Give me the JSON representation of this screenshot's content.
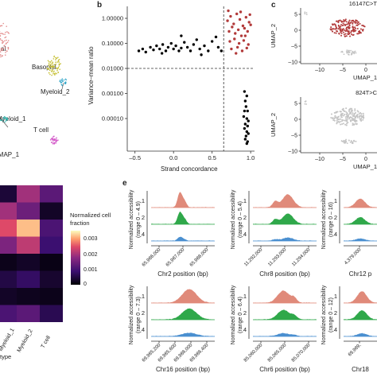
{
  "panels": {
    "b": "b",
    "c": "c",
    "e": "e"
  },
  "umap_a": {
    "clusters": [
      {
        "label": "Basophil",
        "color": "#c8c23a"
      },
      {
        "label": "Myeloid_2",
        "color": "#35a7c9"
      },
      {
        "label": "Myeloid_1",
        "color": "#2fb8b0"
      },
      {
        "label": "T cell",
        "color": "#d357c8"
      }
    ],
    "partial_top_label": "al",
    "xlabel_partial": "UMAP_1"
  },
  "heatmap": {
    "legend_title_1": "Normalized cell",
    "legend_title_2": "fraction",
    "legend_ticks": [
      "0.003",
      "0.002",
      "0.001",
      "0"
    ],
    "x_ticks": [
      "Myeloid_1",
      "Myeloid_2",
      "T cell"
    ],
    "x_partial": "Myeloid_1",
    "xlabel_partial": "type",
    "columns": 3,
    "rows": 8
  },
  "chart_data": [
    {
      "type": "scatter",
      "panel": "b",
      "xlabel": "Strand concordance",
      "ylabel": "Variance–mean ratio",
      "log_y": true,
      "xlim": [
        -0.6,
        1.05
      ],
      "ylim": [
        5e-06,
        3
      ],
      "x_ticks": [
        -0.5,
        0,
        0.5,
        1
      ],
      "x_tick_labels": [
        "–0.5",
        "0.0",
        "0.5",
        "1.0"
      ],
      "y_ticks": [
        1,
        0.1,
        0.01,
        0.001,
        0.0001
      ],
      "y_tick_labels": [
        "1.00000",
        "0.10000",
        "0.01000",
        "0.00100",
        "0.00010"
      ],
      "thresholds": {
        "x": 0.65,
        "y": 0.01
      },
      "series": [
        {
          "color": "#000000",
          "points": [
            [
              -0.45,
              0.05
            ],
            [
              -0.4,
              0.06
            ],
            [
              -0.36,
              0.045
            ],
            [
              -0.3,
              0.07
            ],
            [
              -0.26,
              0.055
            ],
            [
              -0.22,
              0.08
            ],
            [
              -0.18,
              0.06
            ],
            [
              -0.14,
              0.09
            ],
            [
              -0.1,
              0.05
            ],
            [
              -0.07,
              0.07
            ],
            [
              -0.03,
              0.1
            ],
            [
              0.0,
              0.06
            ],
            [
              0.03,
              0.08
            ],
            [
              0.07,
              0.05
            ],
            [
              0.1,
              0.065
            ],
            [
              0.14,
              0.11
            ],
            [
              0.18,
              0.07
            ],
            [
              0.22,
              0.05
            ],
            [
              0.26,
              0.09
            ],
            [
              0.3,
              0.14
            ],
            [
              0.34,
              0.06
            ],
            [
              0.4,
              0.08
            ],
            [
              0.45,
              0.05
            ],
            [
              0.5,
              0.12
            ],
            [
              0.55,
              0.18
            ],
            [
              0.58,
              0.07
            ],
            [
              0.62,
              0.05
            ],
            [
              0.1,
              0.2
            ],
            [
              -0.15,
              0.04
            ],
            [
              0.36,
              0.035
            ],
            [
              0.92,
              0.0012
            ],
            [
              0.95,
              0.0008
            ],
            [
              0.93,
              0.0005
            ],
            [
              0.94,
              0.0003
            ],
            [
              0.96,
              0.0002
            ],
            [
              0.91,
              0.00012
            ],
            [
              0.95,
              0.0001
            ],
            [
              0.97,
              8e-05
            ],
            [
              0.93,
              6e-05
            ],
            [
              0.96,
              5e-05
            ],
            [
              0.92,
              4e-05
            ],
            [
              0.95,
              3e-05
            ],
            [
              0.97,
              2.5e-05
            ],
            [
              0.94,
              2e-05
            ],
            [
              0.93,
              1.5e-05
            ],
            [
              0.96,
              1.2e-05
            ],
            [
              0.95,
              1e-05
            ],
            [
              0.92,
              0.0002
            ]
          ]
        },
        {
          "color": "#b23a3a",
          "points": [
            [
              0.7,
              0.8
            ],
            [
              0.74,
              1.2
            ],
            [
              0.78,
              0.6
            ],
            [
              0.82,
              1.5
            ],
            [
              0.86,
              0.9
            ],
            [
              0.9,
              0.5
            ],
            [
              0.94,
              1.1
            ],
            [
              0.98,
              0.7
            ],
            [
              0.72,
              0.3
            ],
            [
              0.76,
              0.45
            ],
            [
              0.8,
              0.25
            ],
            [
              0.84,
              0.35
            ],
            [
              0.88,
              0.2
            ],
            [
              0.92,
              0.4
            ],
            [
              0.96,
              0.3
            ],
            [
              1.0,
              0.55
            ],
            [
              0.73,
              0.12
            ],
            [
              0.79,
              0.15
            ],
            [
              0.85,
              0.1
            ],
            [
              0.91,
              0.13
            ],
            [
              0.97,
              0.09
            ],
            [
              0.75,
              0.06
            ],
            [
              0.83,
              0.07
            ],
            [
              0.89,
              0.05
            ],
            [
              0.95,
              0.065
            ],
            [
              0.71,
              2.0
            ],
            [
              0.87,
              1.8
            ],
            [
              0.99,
              1.4
            ],
            [
              0.81,
              0.04
            ],
            [
              0.93,
              0.2
            ]
          ]
        }
      ]
    }
  ],
  "umap_c": {
    "plots": [
      {
        "title": "16147C>T",
        "ylabel": "UMAP_2",
        "xlabel": "UMAP_1",
        "highlight": true
      },
      {
        "title": "824T>C",
        "ylabel": "UMAP_2",
        "xlabel": "UMAP_1",
        "highlight": false
      }
    ],
    "x_ticks": [
      "–10",
      "–5",
      "0"
    ],
    "y_ticks": [
      "5",
      "0",
      "–5",
      "–10"
    ]
  },
  "coverage": {
    "row_labels": [
      "1",
      "2",
      "4"
    ],
    "colors": [
      "#e08a7a",
      "#2fa84a",
      "#4a8fd0"
    ],
    "plots": [
      {
        "ylabel": "Normalized accessibility",
        "range": "(range 0 – 4.9)",
        "xlabel": "Chr2 position (bp)",
        "ticks": [
          "65,986,000",
          "65,987,000",
          "65,988,000"
        ]
      },
      {
        "ylabel": "Normalized accessibility",
        "range": "(range 0 – 5.4)",
        "xlabel": "Chr8 position (bp)",
        "ticks": [
          "11,292,000",
          "11,293,000",
          "11,294,000"
        ]
      },
      {
        "ylabel": "Normalized accessibility",
        "range": "(range 0 – 16)",
        "xlabel": "Chr12 p",
        "ticks": [
          "4,379,000"
        ]
      },
      {
        "ylabel": "Normalized accessibility",
        "range": "(range 0 – 7.3)",
        "xlabel": "Chr16 position (bp)",
        "ticks": [
          "69,985,200",
          "69,985,600",
          "69,986,000",
          "69,986,400"
        ]
      },
      {
        "ylabel": "Normalized accessibility",
        "range": "(range 0 – 6.4)",
        "xlabel": "Chr6 position (bp)",
        "ticks": [
          "85,060,000",
          "85,065,000",
          "85,070,000"
        ]
      },
      {
        "ylabel": "Normalized accessibility",
        "range": "(range 0 – 12)",
        "xlabel": "Chr18",
        "ticks": [
          "69,989,"
        ]
      }
    ]
  }
}
